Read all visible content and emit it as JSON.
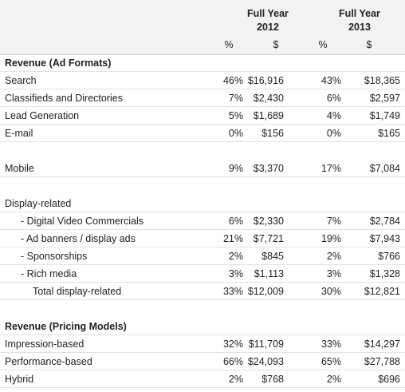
{
  "table": {
    "groups": [
      [
        "Full Year",
        "2012"
      ],
      [
        "Full Year",
        "2013"
      ]
    ],
    "subheaders": [
      "%",
      "$",
      "%",
      "$"
    ],
    "sections": [
      {
        "heading": "Revenue (Ad Formats)",
        "rows": [
          [
            "Search",
            "46%",
            "$16,916",
            "43%",
            "$18,365"
          ],
          [
            "Classifieds and Directories",
            "7%",
            "$2,430",
            "6%",
            "$2,597"
          ],
          [
            "Lead Generation",
            "5%",
            "$1,689",
            "4%",
            "$1,749"
          ],
          [
            "E-mail",
            "0%",
            "$156",
            "0%",
            "$165"
          ]
        ]
      },
      {
        "rows": [
          [
            "Mobile",
            "9%",
            "$3,370",
            "17%",
            "$7,084"
          ]
        ]
      },
      {
        "rows": [
          [
            "Display-related"
          ],
          [
            "- Digital Video Commercials",
            "6%",
            "$2,330",
            "7%",
            "$2,784"
          ],
          [
            "- Ad banners / display ads",
            "21%",
            "$7,721",
            "19%",
            "$7,943"
          ],
          [
            "- Sponsorships",
            "2%",
            "$845",
            "2%",
            "$766"
          ],
          [
            "- Rich media",
            "3%",
            "$1,113",
            "3%",
            "$1,328"
          ],
          [
            "Total display-related",
            "33%",
            "$12,009",
            "30%",
            "$12,821"
          ]
        ]
      },
      {
        "heading": "Revenue (Pricing Models)",
        "rows": [
          [
            "Impression-based",
            "32%",
            "$11,709",
            "33%",
            "$14,297"
          ],
          [
            "Performance-based",
            "66%",
            "$24,093",
            "65%",
            "$27,788"
          ],
          [
            "Hybrid",
            "2%",
            "$768",
            "2%",
            "$696"
          ]
        ]
      }
    ]
  }
}
